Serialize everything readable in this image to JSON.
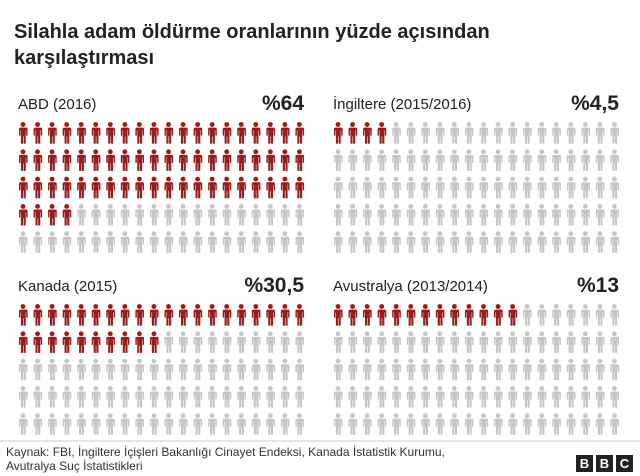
{
  "title": [
    "Silahla adam öldürme oranlarının yüzde açısından",
    "karşılaştırması"
  ],
  "chart_data": [
    {
      "type": "pictogram",
      "title": "ABD (2016)",
      "values": [
        64
      ],
      "value_labels": [
        "%64"
      ],
      "color": "#9b1c1c",
      "rest_color": "#c6c6c6",
      "icons": 100,
      "per_row": 20
    },
    {
      "type": "pictogram",
      "title": "İngiltere (2015/2016)",
      "values": [
        4.5
      ],
      "value_labels": [
        "%4,5"
      ],
      "color": "#9b1c1c",
      "rest_color": "#c6c6c6",
      "icons": 100,
      "per_row": 20
    },
    {
      "type": "pictogram",
      "title": "Kanada (2015)",
      "values": [
        30.5
      ],
      "value_labels": [
        "%30,5"
      ],
      "color": "#9b1c1c",
      "rest_color": "#c6c6c6",
      "icons": 100,
      "per_row": 20
    },
    {
      "type": "pictogram",
      "title": "Avustralya (2013/2014)",
      "values": [
        13
      ],
      "value_labels": [
        "%13"
      ],
      "color": "#9b1c1c",
      "rest_color": "#c6c6c6",
      "icons": 100,
      "per_row": 20
    }
  ],
  "source": [
    "Kaynak: FBI, İngiltere İçişleri Bakanlığı Cinayet Endeksi, Kanada İstatistik Kurumu,",
    "Avutralya Suç İstatistikleri"
  ],
  "logo": [
    "B",
    "B",
    "C"
  ]
}
